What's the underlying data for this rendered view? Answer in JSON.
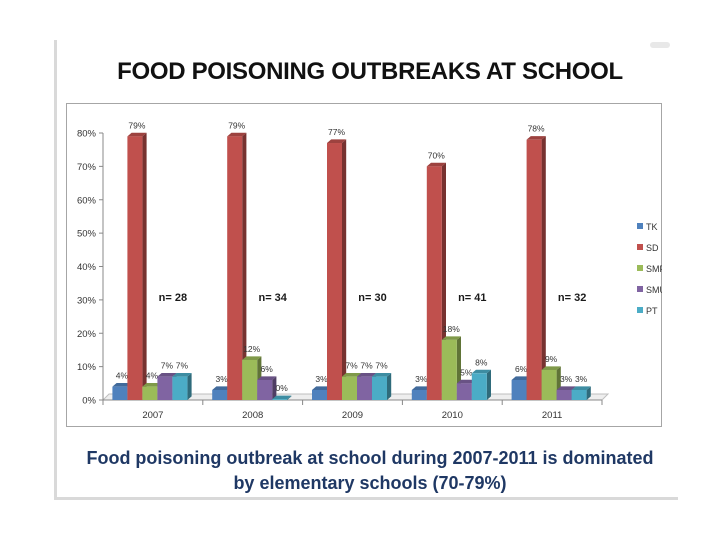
{
  "slide": {
    "title": "FOOD POISONING OUTBREAKS AT SCHOOL",
    "caption_line1": "Food poisoning outbreak at school during 2007-2011 is dominated",
    "caption_line2": "by elementary schools (70-79%)"
  },
  "colors": {
    "TK": "#4f81bd",
    "SD": "#c0504d",
    "SMP": "#9bbb59",
    "SMU": "#8064a2",
    "PT": "#4bacc6"
  },
  "chart_data": {
    "type": "bar",
    "categories": [
      "2007",
      "2008",
      "2009",
      "2010",
      "2011"
    ],
    "series": [
      {
        "name": "TK",
        "values": [
          4,
          3,
          3,
          3,
          6
        ]
      },
      {
        "name": "SD",
        "values": [
          79,
          79,
          77,
          70,
          78
        ]
      },
      {
        "name": "SMP",
        "values": [
          4,
          12,
          7,
          18,
          9
        ]
      },
      {
        "name": "SMU",
        "values": [
          7,
          6,
          7,
          5,
          3
        ]
      },
      {
        "name": "PT",
        "values": [
          7,
          0,
          7,
          8,
          3
        ]
      }
    ],
    "data_labels": [
      [
        "4%",
        "79%",
        "4%",
        "7%",
        "7%"
      ],
      [
        "3%",
        "79%",
        "12%",
        "6%",
        "0%"
      ],
      [
        "3%",
        "77%",
        "7%",
        "7%",
        "7%"
      ],
      [
        "3%",
        "70%",
        "18%",
        "5%",
        "8%"
      ],
      [
        "6%",
        "78%",
        "9%",
        "3%",
        "3%"
      ]
    ],
    "n_labels": [
      "n= 28",
      "n= 34",
      "n= 30",
      "n= 41",
      "n= 32"
    ],
    "y_ticks": [
      "0%",
      "10%",
      "20%",
      "30%",
      "40%",
      "50%",
      "60%",
      "70%",
      "80%"
    ],
    "ylim": [
      0,
      80
    ],
    "legend_position": "right",
    "grid": false,
    "title": "",
    "xlabel": "",
    "ylabel": ""
  }
}
